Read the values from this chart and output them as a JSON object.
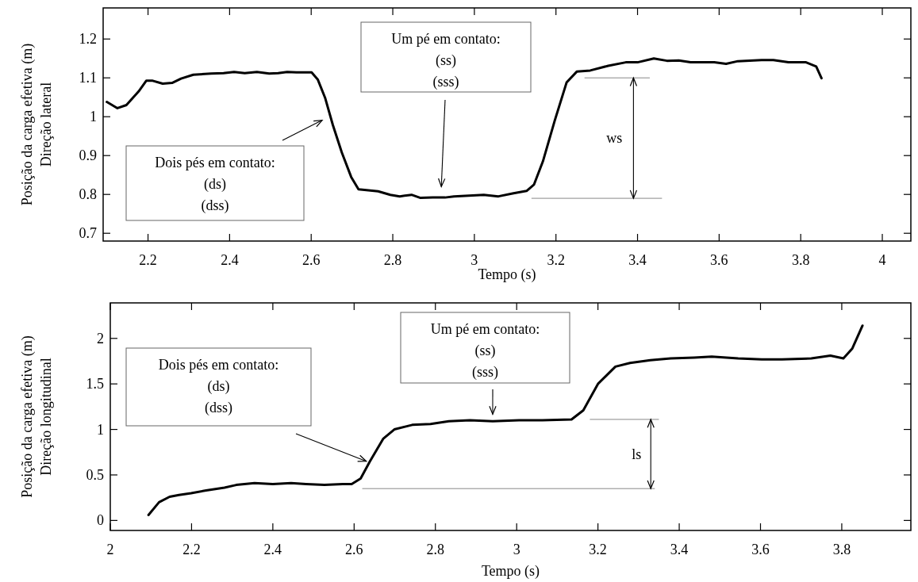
{
  "chart_data": [
    {
      "type": "line",
      "xlabel": "Tempo (s)",
      "ylabel": "Posição da carga efetiva (m)\nDireção lateral",
      "xlim": [
        2.09,
        4.07
      ],
      "ylim": [
        0.68,
        1.28
      ],
      "xticks": [
        2.2,
        2.4,
        2.6,
        2.8,
        3,
        3.2,
        3.4,
        3.6,
        3.8,
        4
      ],
      "yticks": [
        0.7,
        0.8,
        0.9,
        1,
        1.1,
        1.2
      ],
      "marker": "none",
      "line_style": "solid",
      "series": [
        {
          "color": "#000000",
          "x": [
            2.099,
            2.125,
            2.147,
            2.177,
            2.196,
            2.21,
            2.236,
            2.259,
            2.281,
            2.311,
            2.355,
            2.385,
            2.411,
            2.437,
            2.467,
            2.497,
            2.519,
            2.541,
            2.564,
            2.601,
            2.616,
            2.634,
            2.653,
            2.675,
            2.698,
            2.716,
            2.764,
            2.794,
            2.817,
            2.846,
            2.868,
            2.898,
            2.928,
            2.95,
            3.023,
            3.059,
            3.096,
            3.128,
            3.146,
            3.168,
            3.197,
            3.226,
            3.251,
            3.284,
            3.328,
            3.371,
            3.4,
            3.44,
            3.472,
            3.501,
            3.53,
            3.588,
            3.617,
            3.646,
            3.704,
            3.733,
            3.77,
            3.813,
            3.838,
            3.851
          ],
          "values": [
            1.038,
            1.022,
            1.03,
            1.065,
            1.093,
            1.093,
            1.085,
            1.087,
            1.098,
            1.108,
            1.111,
            1.112,
            1.115,
            1.112,
            1.115,
            1.111,
            1.112,
            1.115,
            1.114,
            1.114,
            1.096,
            1.049,
            0.979,
            0.908,
            0.845,
            0.813,
            0.808,
            0.799,
            0.795,
            0.799,
            0.791,
            0.792,
            0.792,
            0.795,
            0.799,
            0.795,
            0.803,
            0.809,
            0.825,
            0.885,
            0.99,
            1.088,
            1.116,
            1.119,
            1.131,
            1.14,
            1.14,
            1.15,
            1.144,
            1.145,
            1.14,
            1.14,
            1.136,
            1.143,
            1.146,
            1.146,
            1.14,
            1.14,
            1.129,
            1.099
          ]
        }
      ],
      "annotations": [
        "Dois pés em contato:\n(ds)\n(dss)",
        "Um pé em contato:\n(ss)\n(sss)",
        "ws"
      ]
    },
    {
      "type": "line",
      "xlabel": "Tempo (s)",
      "ylabel": "Posição da carga efetiva (m)\nDireção longitudinal",
      "xlim": [
        2,
        3.97
      ],
      "ylim": [
        -0.11,
        2.39
      ],
      "xticks": [
        2,
        2.2,
        2.4,
        2.6,
        2.8,
        3,
        3.2,
        3.4,
        3.6,
        3.8
      ],
      "yticks": [
        0,
        0.5,
        1,
        1.5,
        2
      ],
      "marker": "none",
      "line_style": "solid",
      "series": [
        {
          "color": "#000000",
          "x": [
            2.094,
            2.12,
            2.146,
            2.169,
            2.199,
            2.236,
            2.281,
            2.31,
            2.355,
            2.4,
            2.445,
            2.482,
            2.527,
            2.572,
            2.594,
            2.616,
            2.639,
            2.672,
            2.699,
            2.743,
            2.788,
            2.833,
            2.885,
            2.941,
            3.006,
            3.063,
            3.135,
            3.164,
            3.2,
            3.243,
            3.279,
            3.329,
            3.379,
            3.437,
            3.48,
            3.545,
            3.603,
            3.653,
            3.725,
            3.772,
            3.804,
            3.826,
            3.851
          ],
          "values": [
            0.06,
            0.2,
            0.26,
            0.28,
            0.3,
            0.33,
            0.36,
            0.39,
            0.41,
            0.4,
            0.41,
            0.4,
            0.39,
            0.4,
            0.4,
            0.46,
            0.65,
            0.9,
            1,
            1.05,
            1.06,
            1.09,
            1.1,
            1.09,
            1.1,
            1.1,
            1.11,
            1.21,
            1.5,
            1.69,
            1.73,
            1.76,
            1.78,
            1.79,
            1.8,
            1.78,
            1.77,
            1.77,
            1.78,
            1.81,
            1.78,
            1.89,
            2.14
          ]
        }
      ],
      "annotations": [
        "Dois pés em contato:\n(ds)\n(dss)",
        "Um pé em contato:\n(ss)\n(sss)",
        "ls"
      ]
    }
  ]
}
